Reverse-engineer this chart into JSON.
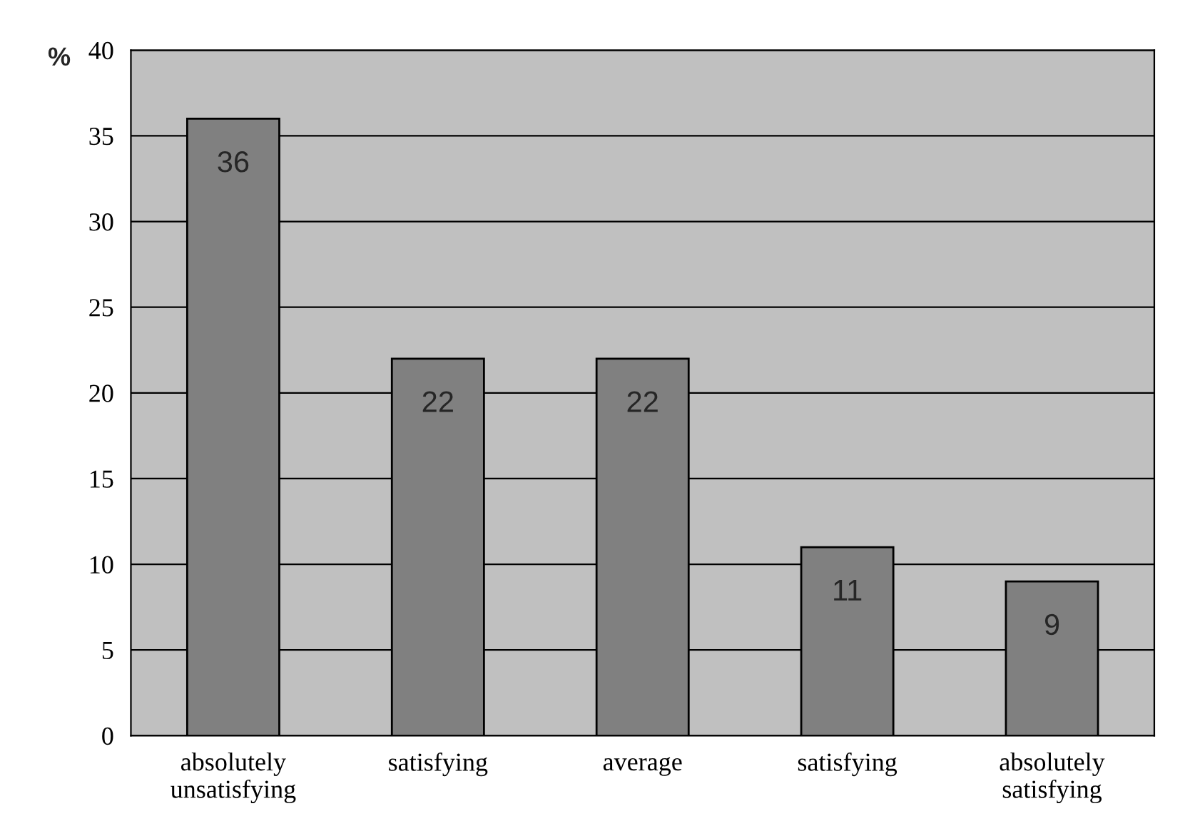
{
  "chart_data": {
    "type": "bar",
    "ylabel": "%",
    "categories": [
      "absolutely\nunsatisfying",
      "satisfying",
      "average",
      "satisfying",
      "absolutely\nsatisfying"
    ],
    "values": [
      36,
      22,
      22,
      11,
      9
    ],
    "color": "#808080",
    "ylim": [
      0,
      40
    ],
    "yticks": [
      0,
      5,
      10,
      15,
      20,
      25,
      30,
      35,
      40
    ],
    "grid": "y",
    "data_labels": true,
    "legend": false
  }
}
